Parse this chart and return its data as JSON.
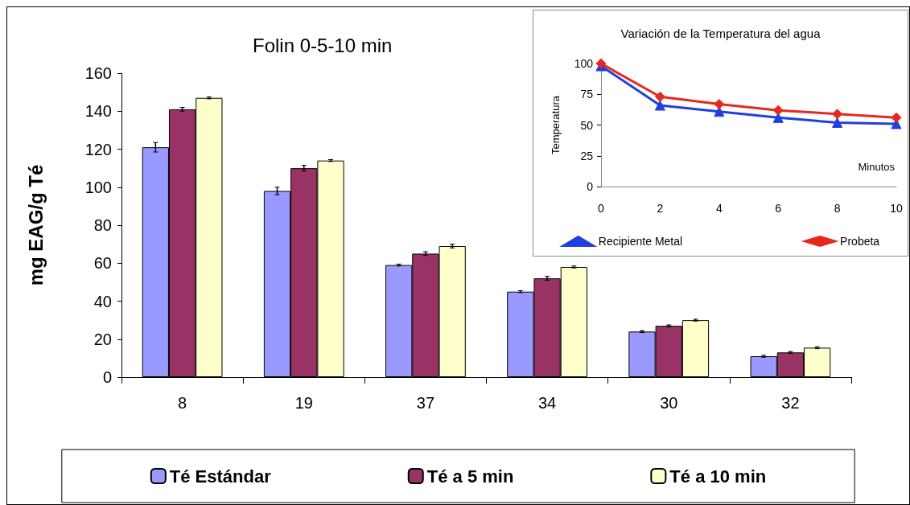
{
  "chart_data": [
    {
      "type": "bar",
      "title": "Folin 0-5-10 min",
      "ylabel": "mg EAG/g Té",
      "categories": [
        "8",
        "19",
        "37",
        "34",
        "30",
        "32"
      ],
      "series": [
        {
          "name": "Té Estándar",
          "color": "#9999ff",
          "values": [
            121,
            98,
            59,
            45,
            24,
            11
          ],
          "errors": [
            2.5,
            2,
            0.5,
            0.5,
            0.5,
            0.5
          ]
        },
        {
          "name": "Té a 5 min",
          "color": "#993366",
          "values": [
            141,
            110,
            65,
            52,
            27,
            13
          ],
          "errors": [
            1,
            1.5,
            1,
            1,
            0.5,
            0.5
          ]
        },
        {
          "name": "Té a 10 min",
          "color": "#ffffcc",
          "values": [
            147,
            114,
            69,
            58,
            30,
            15.5
          ],
          "errors": [
            0.5,
            0.5,
            1,
            0.5,
            0.5,
            0.5
          ]
        }
      ],
      "ylim": [
        0,
        160
      ],
      "yticks": [
        0,
        20,
        40,
        60,
        80,
        100,
        120,
        140,
        160
      ],
      "legend": "bottom"
    },
    {
      "type": "line",
      "title": "Variación de la Temperatura del agua",
      "xlabel": "Minutos",
      "ylabel": "Temperatura",
      "x": [
        0,
        2,
        4,
        6,
        8,
        10
      ],
      "series": [
        {
          "name": "Recipiente Metal",
          "color": "#1f3fe0",
          "marker": "triangle",
          "values": [
            98,
            66,
            61,
            56,
            52,
            51
          ]
        },
        {
          "name": "Probeta",
          "color": "#e8281e",
          "marker": "diamond",
          "values": [
            100,
            73,
            67,
            62,
            59,
            56
          ]
        }
      ],
      "xlim": [
        0,
        10
      ],
      "xticks": [
        0,
        2,
        4,
        6,
        8,
        10
      ],
      "ylim": [
        0,
        100
      ],
      "yticks": [
        0,
        25,
        50,
        75,
        100
      ],
      "legend": "bottom"
    }
  ]
}
